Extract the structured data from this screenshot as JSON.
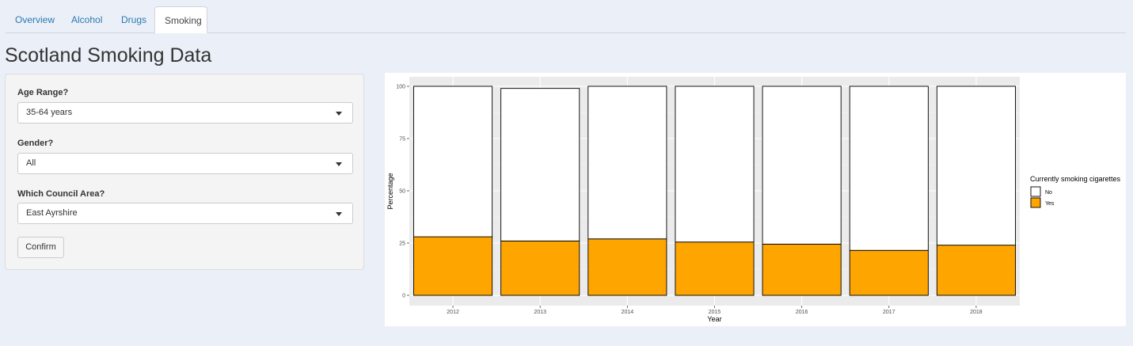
{
  "tabs": [
    {
      "label": "Overview",
      "active": false
    },
    {
      "label": "Alcohol",
      "active": false
    },
    {
      "label": "Drugs",
      "active": false
    },
    {
      "label": "Smoking",
      "active": true
    }
  ],
  "page_title": "Scotland Smoking Data",
  "filters": {
    "age": {
      "label": "Age Range?",
      "value": "35-64 years"
    },
    "gender": {
      "label": "Gender?",
      "value": "All"
    },
    "council": {
      "label": "Which Council Area?",
      "value": "East Ayrshire"
    },
    "confirm_label": "Confirm"
  },
  "chart_data": {
    "type": "bar",
    "stacked": true,
    "categories": [
      "2012",
      "2013",
      "2014",
      "2015",
      "2016",
      "2017",
      "2018"
    ],
    "series": [
      {
        "name": "Yes",
        "color": "#ffa500",
        "values": [
          28,
          26,
          27,
          25.5,
          24.5,
          21.5,
          24
        ]
      },
      {
        "name": "No",
        "color": "#ffffff",
        "values": [
          72,
          73,
          73,
          74.5,
          75.5,
          78.5,
          76
        ]
      }
    ],
    "xlabel": "Year",
    "ylabel": "Percentage",
    "yticks": [
      "0",
      "25",
      "50",
      "75",
      "100"
    ],
    "ylim": [
      0,
      100
    ],
    "grid": true,
    "legend": {
      "title": "Currently smoking cigarettes",
      "position": "right",
      "entries": [
        "No",
        "Yes"
      ]
    }
  }
}
